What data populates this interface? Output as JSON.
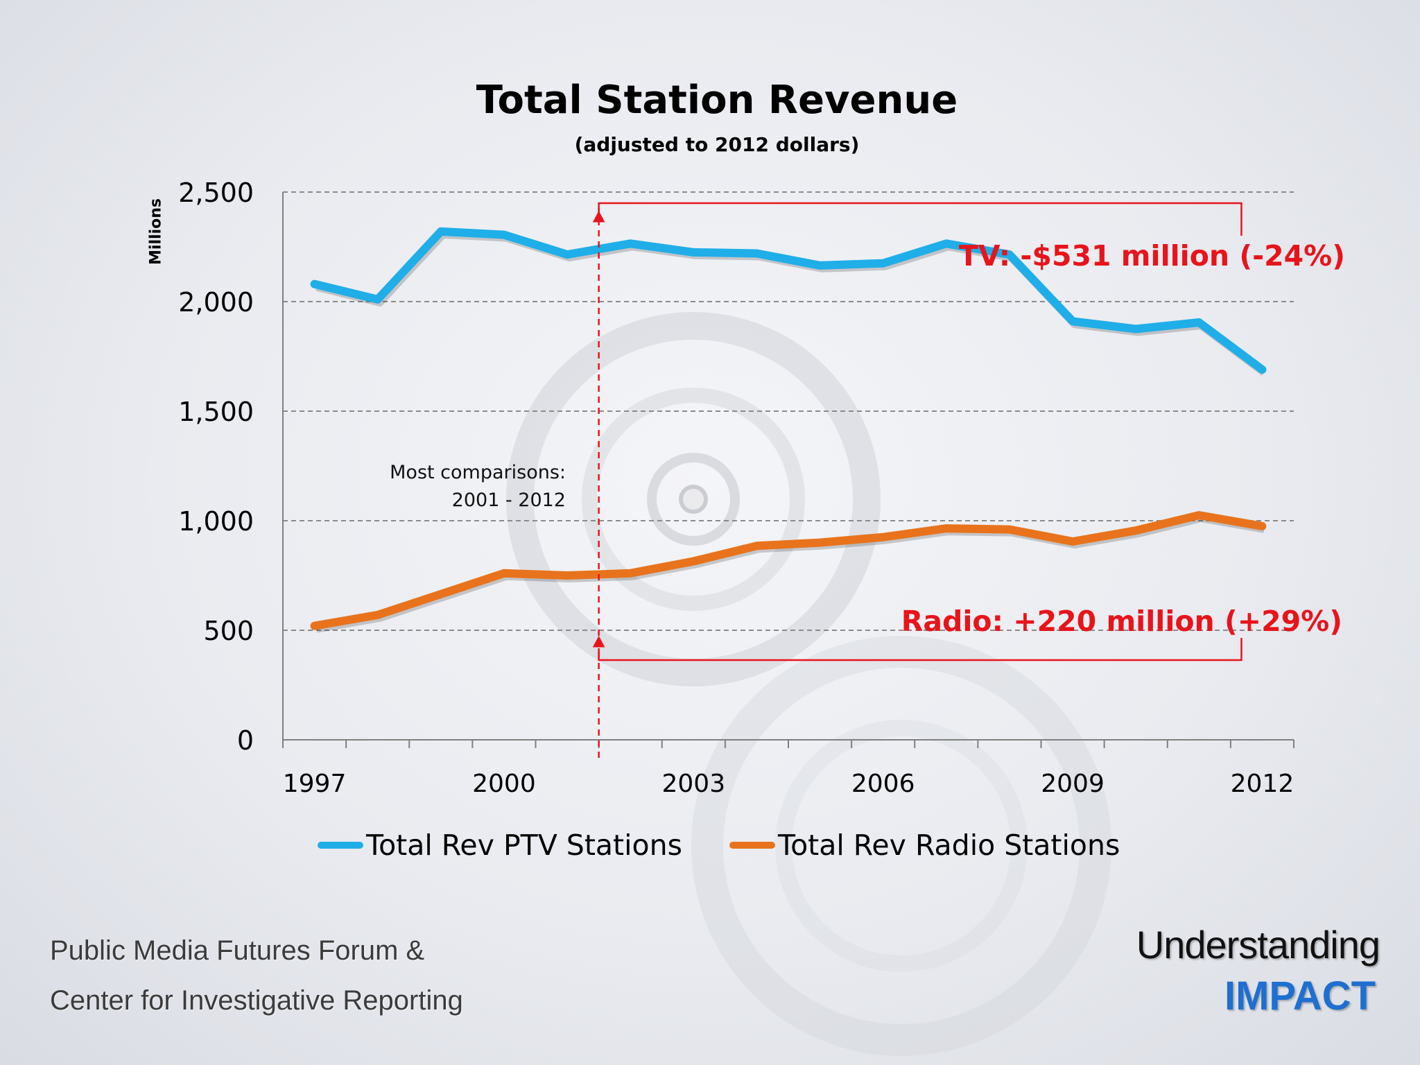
{
  "slide": {
    "title": "Total Station Revenue",
    "subtitle": "(adjusted to 2012 dollars)",
    "y_axis_label": "Millions",
    "annotation_note_line1": "Most comparisons:",
    "annotation_note_line2": "2001 - 2012",
    "tv_callout": "TV: -$531 million (-24%)",
    "radio_callout": "Radio: +220 million (+29%)",
    "footer_left_line1": "Public Media Futures Forum &",
    "footer_left_line2": "Center for Investigative Reporting",
    "footer_right_line1": "Understanding",
    "footer_right_line2": "IMPACT"
  },
  "colors": {
    "ptv": "#1faee8",
    "radio": "#e8731c",
    "annotation": "#e8141b",
    "brand_blue": "#1e6fd0"
  },
  "chart_data": {
    "type": "line",
    "title": "Total Station Revenue",
    "subtitle": "(adjusted to 2012 dollars)",
    "ylabel": "Millions",
    "xlabel": "",
    "x": [
      1997,
      1998,
      1999,
      2000,
      2001,
      2002,
      2003,
      2004,
      2005,
      2006,
      2007,
      2008,
      2009,
      2010,
      2011,
      2012
    ],
    "xticks": [
      "1997",
      "2000",
      "2003",
      "2006",
      "2009",
      "2012"
    ],
    "yticks": [
      "0",
      "500",
      "1,000",
      "1,500",
      "2,000",
      "2,500"
    ],
    "ylim": [
      0,
      2500
    ],
    "grid": "horizontal dashed",
    "legend_position": "bottom",
    "series": [
      {
        "name": "Total Rev PTV Stations",
        "values": [
          2080,
          2010,
          2320,
          2305,
          2215,
          2265,
          2225,
          2220,
          2165,
          2175,
          2265,
          2215,
          1910,
          1875,
          1905,
          1690
        ]
      },
      {
        "name": "Total Rev Radio Stations",
        "values": [
          520,
          570,
          665,
          760,
          750,
          760,
          815,
          885,
          900,
          925,
          965,
          960,
          905,
          955,
          1025,
          975
        ]
      }
    ],
    "annotations": [
      {
        "text": "Most comparisons: 2001 - 2012",
        "x": 2001.5
      },
      {
        "text": "TV: -$531 million (-24%)",
        "from_x": 2001.5,
        "to_x": 2012
      },
      {
        "text": "Radio: +220 million (+29%)",
        "from_x": 2001.5,
        "to_x": 2012
      }
    ]
  }
}
